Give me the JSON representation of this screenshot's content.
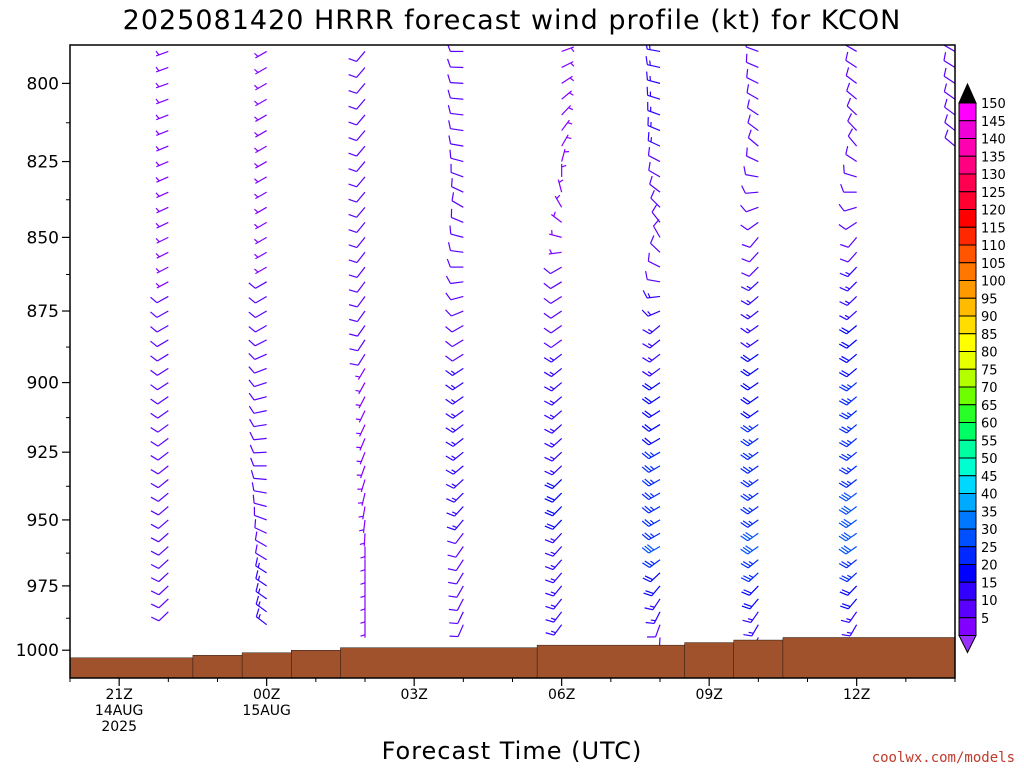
{
  "chart_data": {
    "type": "wind_barb_time_height",
    "title": "2025081420 HRRR forecast wind profile (kt) for KCON",
    "xlabel": "Forecast Time (UTC)",
    "credit": "coolwx.com/models",
    "credit_color": "#c0392b",
    "x_ticks": [
      {
        "hour": 21,
        "lines": [
          "21Z",
          "14AUG",
          "2025"
        ]
      },
      {
        "hour": 24,
        "lines": [
          "00Z",
          "15AUG"
        ]
      },
      {
        "hour": 27,
        "lines": [
          "03Z"
        ]
      },
      {
        "hour": 30,
        "lines": [
          "06Z"
        ]
      },
      {
        "hour": 33,
        "lines": [
          "09Z"
        ]
      },
      {
        "hour": 36,
        "lines": [
          "12Z"
        ]
      }
    ],
    "xlim_hours": [
      20,
      38
    ],
    "y_ticks": [
      800,
      825,
      850,
      875,
      900,
      925,
      950,
      975,
      1000
    ],
    "ylim_hpa": [
      788,
      1011
    ],
    "ground_color": "#a0522d",
    "surface_pressure": [
      {
        "from": 20.0,
        "to": 22.5,
        "hpa": 1003
      },
      {
        "from": 22.5,
        "to": 23.5,
        "hpa": 1002
      },
      {
        "from": 23.5,
        "to": 24.5,
        "hpa": 1001
      },
      {
        "from": 24.5,
        "to": 25.5,
        "hpa": 1000
      },
      {
        "from": 25.5,
        "to": 29.5,
        "hpa": 999
      },
      {
        "from": 29.5,
        "to": 32.5,
        "hpa": 998
      },
      {
        "from": 32.5,
        "to": 33.5,
        "hpa": 997
      },
      {
        "from": 33.5,
        "to": 34.5,
        "hpa": 996
      },
      {
        "from": 34.5,
        "to": 38.0,
        "hpa": 995
      }
    ],
    "profiles": [
      {
        "hour": 22,
        "bottom": 987,
        "segments": [
          [
            800,
            5,
            250
          ],
          [
            880,
            8,
            240
          ],
          [
            940,
            9,
            230
          ],
          [
            1000,
            8,
            225
          ]
        ]
      },
      {
        "hour": 24,
        "bottom": 994,
        "segments": [
          [
            790,
            5,
            240
          ],
          [
            880,
            8,
            240
          ],
          [
            930,
            10,
            270
          ],
          [
            960,
            12,
            300
          ],
          [
            1000,
            14,
            310
          ]
        ]
      },
      {
        "hour": 26,
        "bottom": 992,
        "segments": [
          [
            790,
            12,
            220
          ],
          [
            840,
            10,
            220
          ],
          [
            880,
            8,
            215
          ],
          [
            930,
            6,
            200
          ],
          [
            960,
            5,
            180
          ]
        ]
      },
      {
        "hour": 28,
        "bottom": 990,
        "segments": [
          [
            790,
            12,
            270
          ],
          [
            820,
            11,
            280
          ],
          [
            840,
            10,
            300
          ],
          [
            880,
            12,
            240
          ],
          [
            930,
            14,
            230
          ],
          [
            960,
            12,
            215
          ],
          [
            1000,
            10,
            200
          ]
        ]
      },
      {
        "hour": 30,
        "bottom": 993,
        "segments": [
          [
            790,
            6,
            70
          ],
          [
            820,
            5,
            30
          ],
          [
            840,
            5,
            330
          ],
          [
            860,
            8,
            240
          ],
          [
            900,
            15,
            230
          ],
          [
            940,
            18,
            225
          ],
          [
            1000,
            15,
            215
          ]
        ]
      },
      {
        "hour": 32,
        "bottom": 1002,
        "segments": [
          [
            790,
            15,
            280
          ],
          [
            830,
            12,
            300
          ],
          [
            850,
            10,
            330
          ],
          [
            880,
            14,
            230
          ],
          [
            920,
            22,
            240
          ],
          [
            960,
            28,
            240
          ],
          [
            990,
            10,
            200
          ],
          [
            1002,
            6,
            160
          ]
        ]
      },
      {
        "hour": 34,
        "bottom": 1000,
        "segments": [
          [
            790,
            12,
            290
          ],
          [
            820,
            10,
            310
          ],
          [
            850,
            10,
            220
          ],
          [
            880,
            16,
            235
          ],
          [
            920,
            24,
            235
          ],
          [
            960,
            28,
            235
          ],
          [
            980,
            18,
            220
          ],
          [
            1000,
            8,
            200
          ]
        ]
      },
      {
        "hour": 36,
        "bottom": 1000,
        "segments": [
          [
            790,
            10,
            300
          ],
          [
            820,
            10,
            320
          ],
          [
            850,
            10,
            220
          ],
          [
            880,
            18,
            230
          ],
          [
            920,
            27,
            230
          ],
          [
            960,
            28,
            235
          ],
          [
            980,
            18,
            220
          ],
          [
            1000,
            8,
            200
          ]
        ]
      },
      {
        "hour": 38,
        "bottom": 820,
        "segments": [
          [
            790,
            12,
            300
          ],
          [
            820,
            10,
            310
          ]
        ]
      }
    ],
    "colorbar": {
      "labels": [
        "150",
        "145",
        "140",
        "135",
        "130",
        "125",
        "120",
        "115",
        "110",
        "105",
        "100",
        "95",
        "90",
        "85",
        "80",
        "75",
        "70",
        "65",
        "60",
        "55",
        "50",
        "45",
        "40",
        "35",
        "30",
        "25",
        "20",
        "15",
        "10",
        "5"
      ],
      "colors": [
        "#ff00ff",
        "#f000d8",
        "#ff00b0",
        "#ff0080",
        "#ff0050",
        "#ff0030",
        "#ff0000",
        "#ff2800",
        "#ff5500",
        "#ff7700",
        "#ff9900",
        "#ffbb00",
        "#ffdd00",
        "#ffff00",
        "#e8ff00",
        "#b4ff00",
        "#6eff00",
        "#28ff28",
        "#00ff64",
        "#00ffa0",
        "#00ffd0",
        "#00d8ff",
        "#00aaff",
        "#0078ff",
        "#0050ff",
        "#0028ff",
        "#0000ff",
        "#3200ff",
        "#5a00ff",
        "#8200ff"
      ],
      "top_color": "#000000",
      "bottom_color": "#9a30ff"
    }
  }
}
